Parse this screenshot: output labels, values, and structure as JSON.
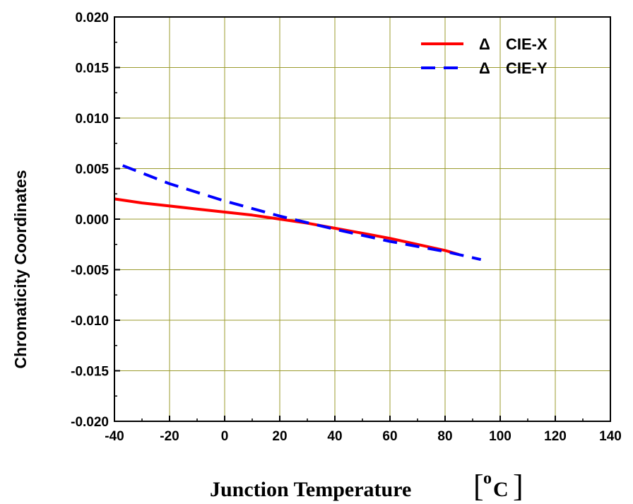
{
  "chart_data": {
    "type": "line",
    "title": "",
    "xlabel": "Junction Temperature",
    "xlabel_unit_open": "[",
    "xlabel_unit_sup": "o",
    "xlabel_unit": "C",
    "xlabel_unit_close": "]",
    "ylabel": "Chromaticity Coordinates",
    "xlim": [
      -40,
      140
    ],
    "ylim": [
      -0.02,
      0.02
    ],
    "grid": true,
    "legend_position": "top-right",
    "x_ticks": [
      "-40",
      "-20",
      "0",
      "20",
      "40",
      "60",
      "80",
      "100",
      "120",
      "140"
    ],
    "y_ticks": [
      "-0.020",
      "-0.015",
      "-0.010",
      "-0.005",
      "0.000",
      "0.005",
      "0.010",
      "0.015",
      "0.020"
    ],
    "series": [
      {
        "name": "CIE-X",
        "marker": "Δ",
        "color": "#ff0000",
        "dash": "solid",
        "x": [
          -40,
          -30,
          -20,
          -10,
          0,
          10,
          20,
          30,
          40,
          50,
          60,
          70,
          80,
          85
        ],
        "y": [
          0.002,
          0.0016,
          0.0013,
          0.001,
          0.0007,
          0.0004,
          0.0,
          -0.0004,
          -0.0009,
          -0.0014,
          -0.0019,
          -0.0025,
          -0.0031,
          -0.0035
        ]
      },
      {
        "name": "CIE-Y",
        "marker": "Δ",
        "color": "#0000ff",
        "dash": "dashed",
        "x": [
          -37,
          -20,
          0,
          20,
          40,
          60,
          80,
          93
        ],
        "y": [
          0.0053,
          0.0035,
          0.0018,
          0.0003,
          -0.001,
          -0.0022,
          -0.0032,
          -0.004
        ]
      }
    ]
  }
}
